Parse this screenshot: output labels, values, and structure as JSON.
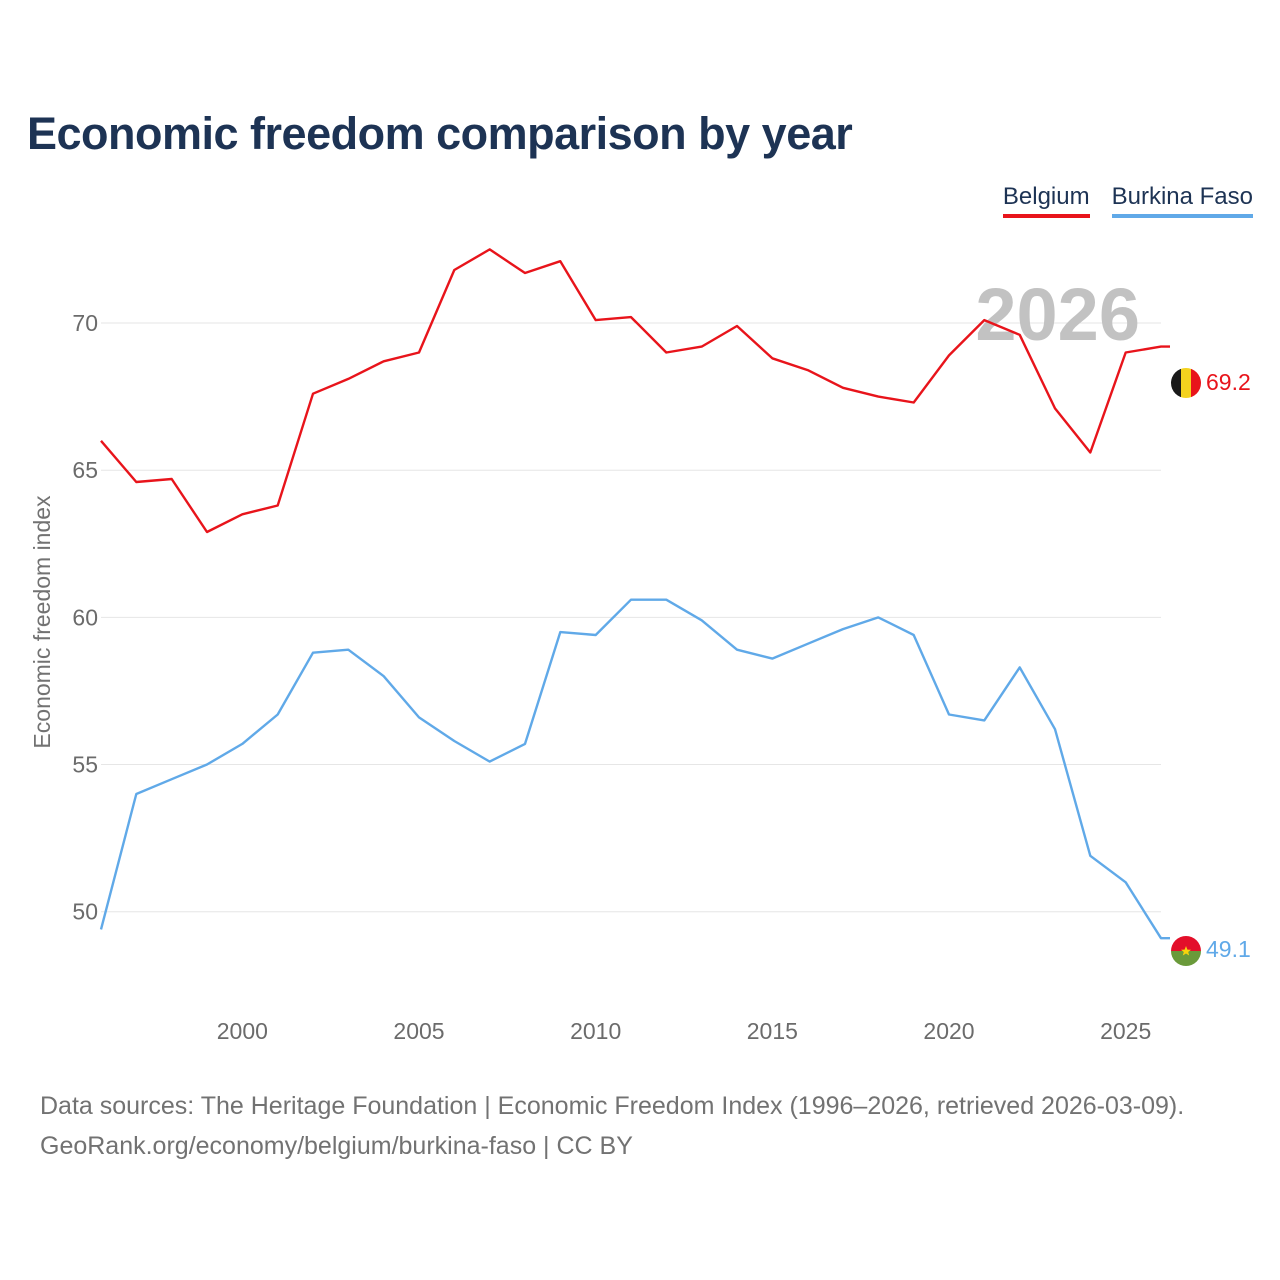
{
  "title": "Economic freedom comparison by year",
  "legend": [
    {
      "label": "Belgium",
      "color": "#e8141b"
    },
    {
      "label": "Burkina Faso",
      "color": "#60a9e8"
    }
  ],
  "chart_data": {
    "type": "line",
    "title": "Economic freedom comparison by year",
    "xlabel": "",
    "ylabel": "Economic freedom index",
    "year_label": "2026",
    "xlim": [
      1996,
      2026
    ],
    "ylim": [
      47,
      73.5
    ],
    "x_ticks": [
      2000,
      2005,
      2010,
      2015,
      2020,
      2025
    ],
    "x_tick_labels": [
      "2000",
      "2005",
      "2010",
      "2015",
      "2020",
      "2025"
    ],
    "y_ticks": [
      50,
      55,
      60,
      65,
      70
    ],
    "y_tick_labels": [
      "50",
      "55",
      "60",
      "65",
      "70"
    ],
    "grid": true,
    "x": [
      1996,
      1997,
      1998,
      1999,
      2000,
      2001,
      2002,
      2003,
      2004,
      2005,
      2006,
      2007,
      2008,
      2009,
      2010,
      2011,
      2012,
      2013,
      2014,
      2015,
      2016,
      2017,
      2018,
      2019,
      2020,
      2021,
      2022,
      2023,
      2024,
      2025,
      2026
    ],
    "series": [
      {
        "name": "Belgium",
        "color": "#e8141b",
        "end_label": "69.2",
        "values": [
          66.0,
          64.6,
          64.7,
          62.9,
          63.5,
          63.8,
          67.6,
          68.1,
          68.7,
          69.0,
          71.8,
          72.5,
          71.7,
          72.1,
          70.1,
          70.2,
          69.0,
          69.2,
          69.9,
          68.8,
          68.4,
          67.8,
          67.5,
          67.3,
          68.9,
          70.1,
          69.6,
          67.1,
          65.6,
          69.0,
          69.2
        ]
      },
      {
        "name": "Burkina Faso",
        "color": "#60a9e8",
        "end_label": "49.1",
        "values": [
          49.4,
          54.0,
          54.5,
          55.0,
          55.7,
          56.7,
          58.8,
          58.9,
          58.0,
          56.6,
          55.8,
          55.1,
          55.7,
          59.5,
          59.4,
          60.6,
          60.6,
          59.9,
          58.9,
          58.6,
          59.1,
          59.6,
          60.0,
          59.4,
          56.7,
          56.5,
          58.3,
          56.2,
          51.9,
          51.0,
          49.1
        ]
      }
    ]
  },
  "footer": {
    "line1": "Data sources: The Heritage Foundation | Economic Freedom Index (1996–2026, retrieved 2026-03-09).",
    "line2": "GeoRank.org/economy/belgium/burkina-faso | CC BY"
  }
}
